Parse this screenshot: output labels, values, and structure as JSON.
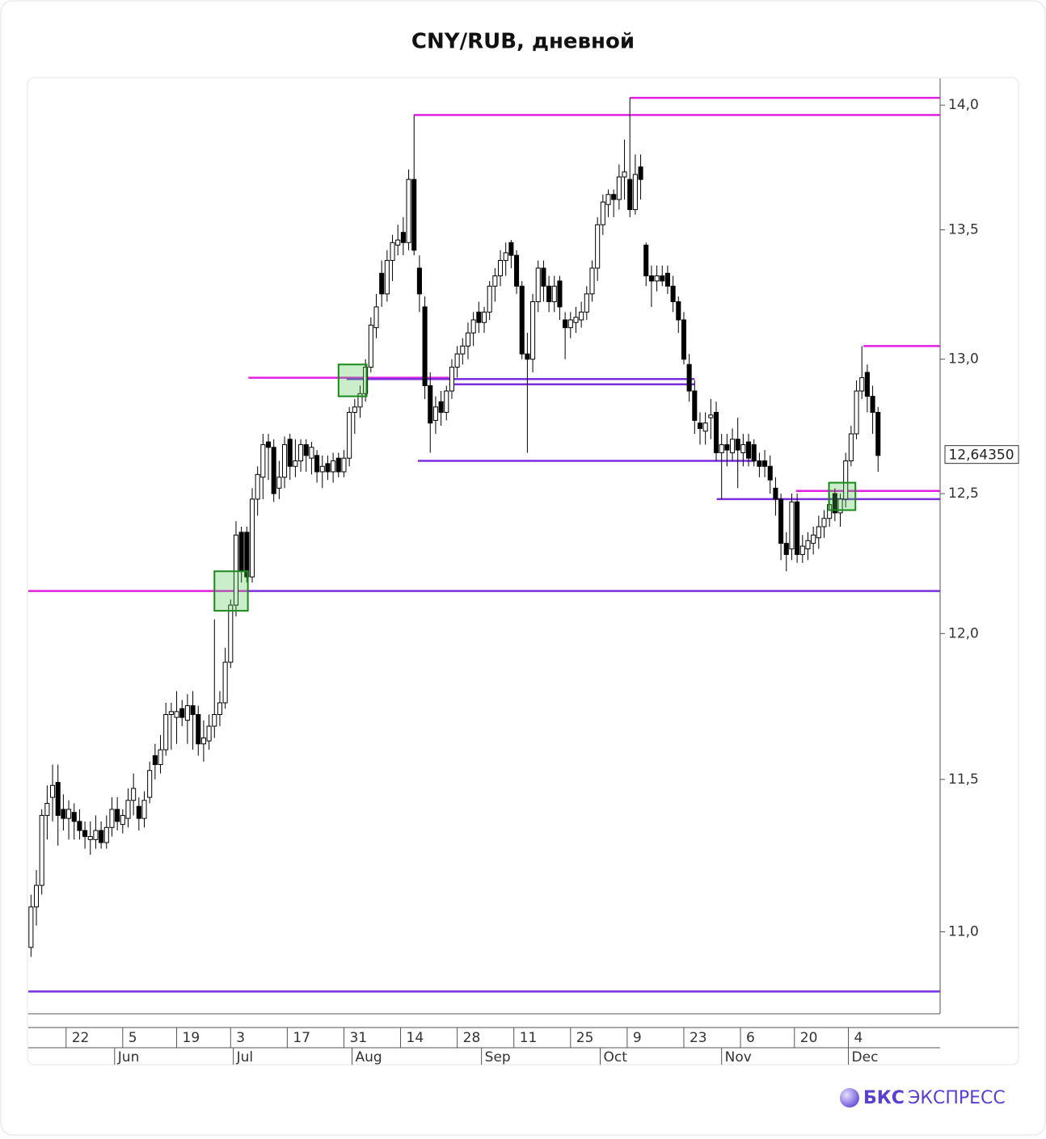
{
  "chart_data": {
    "type": "candlestick",
    "title": "CNY/RUB, дневной",
    "log_y": true,
    "ylim": [
      10.74,
      14.11
    ],
    "yticks": [
      {
        "value": 11.0,
        "label": "11,0"
      },
      {
        "value": 11.5,
        "label": "11,5"
      },
      {
        "value": 12.0,
        "label": "12,0"
      },
      {
        "value": 12.5,
        "label": "12,5"
      },
      {
        "value": 13.0,
        "label": "13,0"
      },
      {
        "value": 13.5,
        "label": "13,5"
      },
      {
        "value": 14.0,
        "label": "14,0"
      }
    ],
    "xlim": [
      -0.5,
      168.5
    ],
    "xticks": [
      {
        "value": 6.5,
        "label": "22"
      },
      {
        "value": 17,
        "label": "5"
      },
      {
        "value": 27,
        "label": "19"
      },
      {
        "value": 37,
        "label": "3"
      },
      {
        "value": 47.5,
        "label": "17"
      },
      {
        "value": 58,
        "label": "31"
      },
      {
        "value": 68.5,
        "label": "14"
      },
      {
        "value": 79,
        "label": "28"
      },
      {
        "value": 89.5,
        "label": "11"
      },
      {
        "value": 100,
        "label": "25"
      },
      {
        "value": 110.5,
        "label": "9"
      },
      {
        "value": 121,
        "label": "23"
      },
      {
        "value": 131.5,
        "label": "6"
      },
      {
        "value": 141.5,
        "label": "20"
      },
      {
        "value": 151.5,
        "label": "4"
      }
    ],
    "month_ticks": [
      {
        "value": 15.5,
        "label": "Jun"
      },
      {
        "value": 37.5,
        "label": "Jul"
      },
      {
        "value": 59.5,
        "label": "Aug"
      },
      {
        "value": 83.5,
        "label": "Sep"
      },
      {
        "value": 105.5,
        "label": "Oct"
      },
      {
        "value": 128,
        "label": "Nov"
      },
      {
        "value": 151.5,
        "label": "Dec"
      }
    ],
    "up_color": "#ffffff",
    "down_color": "#000000",
    "candles": [
      [
        10.95,
        11.12,
        10.92,
        11.08
      ],
      [
        11.08,
        11.2,
        11.02,
        11.15
      ],
      [
        11.15,
        11.4,
        11.12,
        11.38
      ],
      [
        11.38,
        11.48,
        11.3,
        11.42
      ],
      [
        11.44,
        11.55,
        11.36,
        11.48
      ],
      [
        11.49,
        11.55,
        11.28,
        11.38
      ],
      [
        11.4,
        11.45,
        11.33,
        11.37
      ],
      [
        11.37,
        11.43,
        11.3,
        11.4
      ],
      [
        11.39,
        11.42,
        11.3,
        11.36
      ],
      [
        11.36,
        11.4,
        11.3,
        11.33
      ],
      [
        11.33,
        11.36,
        11.27,
        11.31
      ],
      [
        11.3,
        11.36,
        11.25,
        11.31
      ],
      [
        11.3,
        11.38,
        11.27,
        11.33
      ],
      [
        11.33,
        11.36,
        11.27,
        11.29
      ],
      [
        11.29,
        11.38,
        11.27,
        11.34
      ],
      [
        11.34,
        11.44,
        11.31,
        11.4
      ],
      [
        11.4,
        11.44,
        11.33,
        11.36
      ],
      [
        11.35,
        11.4,
        11.32,
        11.38
      ],
      [
        11.37,
        11.47,
        11.34,
        11.43
      ],
      [
        11.43,
        11.52,
        11.38,
        11.47
      ],
      [
        11.41,
        11.44,
        11.33,
        11.37
      ],
      [
        11.37,
        11.46,
        11.34,
        11.43
      ],
      [
        11.44,
        11.56,
        11.42,
        11.53
      ],
      [
        11.58,
        11.62,
        11.5,
        11.55
      ],
      [
        11.55,
        11.65,
        11.52,
        11.6
      ],
      [
        11.6,
        11.76,
        11.58,
        11.72
      ],
      [
        11.72,
        11.76,
        11.6,
        11.73
      ],
      [
        11.71,
        11.8,
        11.62,
        11.73
      ],
      [
        11.74,
        11.77,
        11.68,
        11.71
      ],
      [
        11.7,
        11.79,
        11.62,
        11.75
      ],
      [
        11.75,
        11.8,
        11.6,
        11.72
      ],
      [
        11.72,
        11.75,
        11.58,
        11.62
      ],
      [
        11.62,
        11.7,
        11.56,
        11.64
      ],
      [
        11.63,
        11.72,
        11.6,
        11.68
      ],
      [
        11.68,
        12.05,
        11.64,
        11.72
      ],
      [
        11.72,
        11.8,
        11.68,
        11.76
      ],
      [
        11.76,
        11.95,
        11.74,
        11.9
      ],
      [
        11.9,
        12.12,
        11.88,
        12.1
      ],
      [
        12.1,
        12.4,
        12.06,
        12.35
      ],
      [
        12.36,
        12.38,
        12.18,
        12.22
      ],
      [
        12.36,
        12.38,
        12.18,
        12.2
      ],
      [
        12.2,
        12.52,
        12.18,
        12.48
      ],
      [
        12.48,
        12.6,
        12.42,
        12.57
      ],
      [
        12.56,
        12.72,
        12.48,
        12.68
      ],
      [
        12.69,
        12.72,
        12.55,
        12.67
      ],
      [
        12.67,
        12.7,
        12.47,
        12.5
      ],
      [
        12.52,
        12.62,
        12.48,
        12.56
      ],
      [
        12.56,
        12.71,
        12.52,
        12.68
      ],
      [
        12.7,
        12.72,
        12.55,
        12.6
      ],
      [
        12.6,
        12.7,
        12.56,
        12.62
      ],
      [
        12.62,
        12.7,
        12.58,
        12.68
      ],
      [
        12.68,
        12.7,
        12.58,
        12.64
      ],
      [
        12.63,
        12.69,
        12.57,
        12.67
      ],
      [
        12.64,
        12.66,
        12.54,
        12.58
      ],
      [
        12.58,
        12.64,
        12.52,
        12.6
      ],
      [
        12.61,
        12.64,
        12.55,
        12.58
      ],
      [
        12.58,
        12.65,
        12.54,
        12.62
      ],
      [
        12.63,
        12.65,
        12.56,
        12.58
      ],
      [
        12.58,
        12.66,
        12.56,
        12.63
      ],
      [
        12.63,
        12.82,
        12.6,
        12.8
      ],
      [
        12.8,
        12.85,
        12.72,
        12.82
      ],
      [
        12.82,
        12.9,
        12.78,
        12.87
      ],
      [
        12.87,
        13.0,
        12.84,
        12.97
      ],
      [
        12.97,
        13.16,
        12.95,
        13.13
      ],
      [
        13.12,
        13.25,
        13.08,
        13.2
      ],
      [
        13.33,
        13.38,
        13.2,
        13.25
      ],
      [
        13.25,
        13.42,
        13.22,
        13.38
      ],
      [
        13.38,
        13.48,
        13.3,
        13.45
      ],
      [
        13.44,
        13.52,
        13.4,
        13.46
      ],
      [
        13.49,
        13.55,
        13.4,
        13.45
      ],
      [
        13.45,
        13.74,
        13.42,
        13.7
      ],
      [
        13.7,
        13.96,
        13.4,
        13.42
      ],
      [
        13.35,
        13.4,
        13.18,
        13.25
      ],
      [
        13.2,
        13.24,
        12.85,
        12.9
      ],
      [
        12.9,
        12.95,
        12.65,
        12.76
      ],
      [
        12.77,
        12.86,
        12.72,
        12.82
      ],
      [
        12.84,
        12.88,
        12.75,
        12.8
      ],
      [
        12.8,
        12.9,
        12.77,
        12.88
      ],
      [
        12.88,
        13.0,
        12.85,
        12.97
      ],
      [
        12.97,
        13.05,
        12.93,
        13.02
      ],
      [
        13.02,
        13.08,
        12.98,
        13.05
      ],
      [
        13.05,
        13.14,
        13.0,
        13.1
      ],
      [
        13.1,
        13.18,
        13.05,
        13.15
      ],
      [
        13.18,
        13.22,
        13.1,
        13.14
      ],
      [
        13.14,
        13.2,
        13.1,
        13.18
      ],
      [
        13.18,
        13.3,
        13.15,
        13.28
      ],
      [
        13.28,
        13.35,
        13.22,
        13.32
      ],
      [
        13.32,
        13.42,
        13.28,
        13.38
      ],
      [
        13.38,
        13.45,
        13.32,
        13.41
      ],
      [
        13.45,
        13.46,
        13.35,
        13.4
      ],
      [
        13.4,
        13.42,
        13.25,
        13.28
      ],
      [
        13.28,
        13.3,
        13.0,
        13.02
      ],
      [
        13.02,
        13.1,
        12.65,
        13.0
      ],
      [
        13.0,
        13.25,
        12.95,
        13.22
      ],
      [
        13.22,
        13.38,
        13.18,
        13.35
      ],
      [
        13.35,
        13.38,
        13.22,
        13.28
      ],
      [
        13.28,
        13.32,
        13.18,
        13.22
      ],
      [
        13.22,
        13.32,
        13.18,
        13.28
      ],
      [
        13.3,
        13.32,
        13.15,
        13.2
      ],
      [
        13.15,
        13.18,
        13.0,
        13.12
      ],
      [
        13.12,
        13.18,
        13.08,
        13.15
      ],
      [
        13.14,
        13.2,
        13.1,
        13.16
      ],
      [
        13.15,
        13.22,
        13.12,
        13.18
      ],
      [
        13.18,
        13.28,
        13.15,
        13.25
      ],
      [
        13.25,
        13.38,
        13.22,
        13.35
      ],
      [
        13.35,
        13.55,
        13.3,
        13.52
      ],
      [
        13.52,
        13.64,
        13.48,
        13.61
      ],
      [
        13.6,
        13.66,
        13.55,
        13.64
      ],
      [
        13.64,
        13.66,
        13.55,
        13.62
      ],
      [
        13.62,
        13.76,
        13.58,
        13.71
      ],
      [
        13.71,
        13.86,
        13.62,
        13.73
      ],
      [
        13.7,
        14.03,
        13.55,
        13.58
      ],
      [
        13.58,
        13.8,
        13.56,
        13.72
      ],
      [
        13.75,
        13.8,
        13.62,
        13.7
      ],
      [
        13.44,
        13.45,
        13.28,
        13.32
      ],
      [
        13.32,
        13.36,
        13.2,
        13.3
      ],
      [
        13.3,
        13.36,
        13.26,
        13.32
      ],
      [
        13.32,
        13.36,
        13.28,
        13.3
      ],
      [
        13.33,
        13.36,
        13.25,
        13.28
      ],
      [
        13.28,
        13.32,
        13.18,
        13.22
      ],
      [
        13.22,
        13.24,
        13.1,
        13.15
      ],
      [
        13.15,
        13.18,
        12.98,
        13.0
      ],
      [
        12.98,
        13.02,
        12.84,
        12.88
      ],
      [
        12.88,
        12.92,
        12.72,
        12.77
      ],
      [
        12.76,
        12.8,
        12.68,
        12.74
      ],
      [
        12.73,
        12.8,
        12.68,
        12.76
      ],
      [
        12.78,
        12.85,
        12.7,
        12.79
      ],
      [
        12.8,
        12.84,
        12.62,
        12.65
      ],
      [
        12.65,
        12.72,
        12.48,
        12.68
      ],
      [
        12.68,
        12.72,
        12.6,
        12.66
      ],
      [
        12.65,
        12.74,
        12.62,
        12.7
      ],
      [
        12.7,
        12.78,
        12.52,
        12.66
      ],
      [
        12.65,
        12.72,
        12.6,
        12.68
      ],
      [
        12.69,
        12.72,
        12.6,
        12.63
      ],
      [
        12.68,
        12.7,
        12.6,
        12.62
      ],
      [
        12.62,
        12.65,
        12.56,
        12.6
      ],
      [
        12.62,
        12.66,
        12.56,
        12.6
      ],
      [
        12.6,
        12.64,
        12.5,
        12.55
      ],
      [
        12.52,
        12.56,
        12.42,
        12.48
      ],
      [
        12.48,
        12.5,
        12.26,
        12.32
      ],
      [
        12.32,
        12.36,
        12.22,
        12.28
      ],
      [
        12.3,
        12.5,
        12.26,
        12.47
      ],
      [
        12.47,
        12.5,
        12.25,
        12.28
      ],
      [
        12.28,
        12.35,
        12.25,
        12.31
      ],
      [
        12.3,
        12.36,
        12.26,
        12.33
      ],
      [
        12.32,
        12.38,
        12.28,
        12.35
      ],
      [
        12.34,
        12.42,
        12.3,
        12.38
      ],
      [
        12.38,
        12.44,
        12.34,
        12.41
      ],
      [
        12.41,
        12.5,
        12.38,
        12.46
      ],
      [
        12.5,
        12.52,
        12.4,
        12.43
      ],
      [
        12.43,
        12.5,
        12.38,
        12.48
      ],
      [
        12.48,
        12.65,
        12.45,
        12.62
      ],
      [
        12.62,
        12.75,
        12.6,
        12.72
      ],
      [
        12.72,
        12.92,
        12.7,
        12.88
      ],
      [
        12.88,
        13.05,
        12.85,
        12.93
      ],
      [
        12.95,
        12.98,
        12.8,
        12.86
      ],
      [
        12.86,
        12.9,
        12.72,
        12.8
      ],
      [
        12.8,
        12.82,
        12.58,
        12.64
      ]
    ],
    "levels": [
      {
        "value": 14.03,
        "from": 111,
        "color": "#e020e0"
      },
      {
        "value": 13.96,
        "from": 71,
        "color": "#e020e0"
      },
      {
        "value": 12.93,
        "from": 40.3,
        "to": 77.5,
        "color": "#e020e0"
      },
      {
        "value": 12.925,
        "from": 58.5,
        "to": 123,
        "color": "#7a2ee0"
      },
      {
        "value": 12.905,
        "from": 77.5,
        "to": 123,
        "color": "#7a2ee0"
      },
      {
        "value": 12.62,
        "from": 71.7,
        "to": 134.2,
        "color": "#7a2ee0"
      },
      {
        "value": 12.48,
        "from": 127.1,
        "color": "#7a2ee0"
      },
      {
        "value": 12.51,
        "from": 141.8,
        "color": "#e020e0"
      },
      {
        "value": 13.05,
        "from": 154.3,
        "color": "#e020e0"
      },
      {
        "value": 12.15,
        "to": 40.3,
        "color": "#e020e0"
      },
      {
        "value": 12.15,
        "from": 40.3,
        "color": "#7a2ee0"
      },
      {
        "value": 10.81,
        "color": "#7a2ee0"
      }
    ],
    "zones": [
      {
        "x": [
          34,
          40.2
        ],
        "y": [
          12.08,
          12.22
        ]
      },
      {
        "x": [
          57,
          62.2
        ],
        "y": [
          12.86,
          12.98
        ]
      },
      {
        "x": [
          147.9,
          152.8
        ],
        "y": [
          12.44,
          12.54
        ]
      }
    ],
    "last_price": {
      "value": 12.6435,
      "label": "12,64350"
    }
  },
  "footer": {
    "brand": "БКС",
    "product": "ЭКСПРЕСС"
  }
}
